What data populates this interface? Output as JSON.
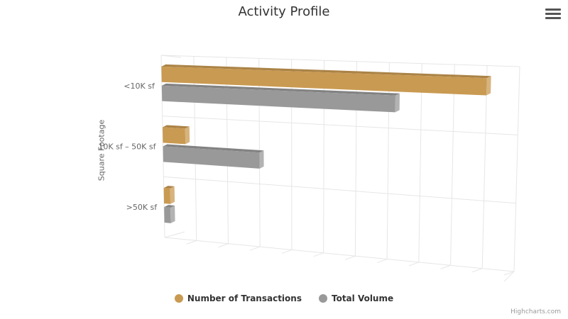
{
  "menu_icon": "hamburger-menu-icon",
  "credits": "Highcharts.com",
  "colors": {
    "transactions": "#c99a52",
    "volume": "#999999"
  },
  "chart_data": {
    "type": "bar",
    "title": "Activity Profile",
    "xlabel": "",
    "ylabel": "Square Footage",
    "categories": [
      "<10K sf",
      "10K sf – 50K sf",
      ">50K sf"
    ],
    "series": [
      {
        "name": "Number of Transactions",
        "values": [
          100,
          7,
          2
        ]
      },
      {
        "name": "Total Volume",
        "values": [
          72,
          30,
          2
        ]
      }
    ],
    "grid": true,
    "legend": "bottom-center"
  }
}
